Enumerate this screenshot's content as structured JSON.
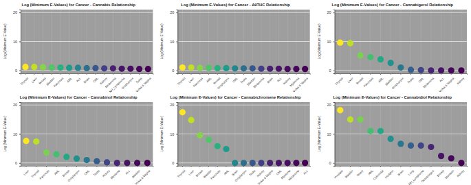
{
  "chart_data": [
    {
      "type": "scatter",
      "title": "Log (Minimum E-Values) for Cancer - Cannabis Relationship",
      "y_label": "Log (Minimum E-Value)",
      "categories": [
        "Thyroid",
        "Liver",
        "Breast",
        "Bladder",
        "Pancreas",
        "AML",
        "ALL",
        "Brain",
        "CML",
        "Kidney",
        "Melanoma",
        "NH_Lymphoma",
        "Oropharynx",
        "Testis",
        "Vulva & Vagina"
      ],
      "values": [
        1.2,
        1.2,
        1.1,
        1.0,
        1.0,
        0.9,
        0.9,
        0.8,
        0.8,
        0.7,
        0.7,
        0.6,
        0.6,
        0.5,
        0.5
      ],
      "colors": [
        "#fde725",
        "#c2df23",
        "#86d549",
        "#52c569",
        "#2ab07f",
        "#1e9b8a",
        "#25858e",
        "#2d708e",
        "#38588c",
        "#433e85",
        "#482173",
        "#481467",
        "#470d60",
        "#46075a",
        "#440154"
      ],
      "ylim": [
        -1,
        21
      ],
      "yticks": [
        0,
        10,
        20
      ],
      "grid": true
    },
    {
      "type": "scatter",
      "title": "Log (Minimum E-Values) for Cancer - Δ9THC Relationship",
      "y_label": "Log (Minimum E-Value)",
      "categories": [
        "Thyroid",
        "Liver",
        "Pancreas",
        "AML",
        "Breast",
        "Oropharynx",
        "CML",
        "Testis",
        "Bladder",
        "Melanoma",
        "Brain",
        "ALL",
        "Kidney",
        "Myeloma",
        "Vulva & Vagina"
      ],
      "values": [
        1.0,
        1.0,
        0.9,
        0.9,
        0.8,
        0.8,
        0.7,
        0.7,
        0.7,
        0.6,
        0.6,
        0.6,
        0.5,
        0.5,
        0.5
      ],
      "colors": [
        "#fde725",
        "#c2df23",
        "#86d549",
        "#52c569",
        "#2ab07f",
        "#1e9b8a",
        "#25858e",
        "#2d708e",
        "#38588c",
        "#433e85",
        "#482173",
        "#481467",
        "#470d60",
        "#46075a",
        "#440154"
      ],
      "ylim": [
        -1,
        21
      ],
      "yticks": [
        0,
        10,
        20
      ],
      "grid": true
    },
    {
      "type": "scatter",
      "title": "Log (Minimum E-Values) for Cancer - Cannabigerol Relationship",
      "y_label": "Log (Minimum E-Value)",
      "categories": [
        "Thyroid",
        "Liver",
        "Breast",
        "Pancreas",
        "AML",
        "Bladder",
        "Oropharynx",
        "Testis",
        "CML",
        "Melanoma",
        "ALL",
        "Vulva & Vagina",
        "Kidney"
      ],
      "values": [
        9.6,
        9.4,
        5.2,
        4.6,
        3.8,
        2.6,
        1.0,
        0.2,
        0.1,
        0,
        0,
        0,
        0
      ],
      "colors": [
        "#fde725",
        "#bddf26",
        "#7ad151",
        "#44bf70",
        "#22a884",
        "#21918c",
        "#2a788e",
        "#355f8d",
        "#414487",
        "#482475",
        "#471365",
        "#45085b",
        "#440154"
      ],
      "ylim": [
        -1,
        21
      ],
      "yticks": [
        0,
        10,
        20
      ],
      "grid": true
    },
    {
      "type": "scatter",
      "title": "Log (Minimum E-Values) for Cancer - Cannabinol Relationship",
      "y_label": "Log (Minimum E-Value)",
      "categories": [
        "Liver",
        "Thyroid",
        "Pancreas",
        "AML",
        "Breast",
        "Oropharynx",
        "CML",
        "Testis",
        "Kidney",
        "Myeloma",
        "ALL",
        "Bladder",
        "Vulva & Vagina"
      ],
      "values": [
        7.6,
        7.4,
        3.6,
        3.0,
        2.1,
        1.5,
        1.0,
        0.6,
        0.2,
        0,
        0,
        0,
        0
      ],
      "colors": [
        "#fde725",
        "#bddf26",
        "#7ad151",
        "#44bf70",
        "#22a884",
        "#21918c",
        "#2a788e",
        "#355f8d",
        "#414487",
        "#482475",
        "#471365",
        "#45085b",
        "#440154"
      ],
      "ylim": [
        -1,
        21
      ],
      "yticks": [
        0,
        10,
        20
      ],
      "grid": true
    },
    {
      "type": "scatter",
      "title": "Log (Minimum E-Values) for Cancer - Cannabichromene Relationship",
      "y_label": "Log (Minimum E-Value)",
      "categories": [
        "Thyroid",
        "Liver",
        "Breast",
        "Bladder",
        "Pancreas",
        "AML",
        "Brain",
        "Oropharynx",
        "Testis",
        "Kidney",
        "Vulva & Vagina",
        "CML",
        "Myeloma",
        "Melanoma",
        "ALL"
      ],
      "values": [
        17.5,
        14.8,
        9.5,
        8.0,
        5.8,
        4.8,
        0,
        0,
        0,
        0,
        0,
        0,
        0,
        0,
        0
      ],
      "colors": [
        "#fde725",
        "#c2df23",
        "#86d549",
        "#52c569",
        "#2ab07f",
        "#1e9b8a",
        "#25858e",
        "#2d708e",
        "#38588c",
        "#433e85",
        "#482173",
        "#481467",
        "#470d60",
        "#46075a",
        "#440154"
      ],
      "ylim": [
        -1,
        21
      ],
      "yticks": [
        0,
        10,
        20
      ],
      "grid": true
    },
    {
      "type": "scatter",
      "title": "Log (Minimum E-Values) for Cancer - Cannabidiol Relationship",
      "y_label": "Log (Minimum E-Value)",
      "categories": [
        "Prostate",
        "Bladder",
        "Ovary",
        "AML",
        "Colorectal",
        "Hodgkin",
        "Brain",
        "Lung",
        "NH_Lymphoma",
        "Oesophagus",
        "Breast",
        "Stomach",
        "Kidney"
      ],
      "values": [
        18.2,
        15.0,
        15.0,
        11.0,
        11.0,
        8.3,
        6.6,
        6.0,
        6.0,
        5.5,
        2.4,
        1.6,
        0
      ],
      "colors": [
        "#fde725",
        "#bddf26",
        "#7ad151",
        "#44bf70",
        "#22a884",
        "#21918c",
        "#2a788e",
        "#355f8d",
        "#414487",
        "#482475",
        "#471365",
        "#45085b",
        "#440154"
      ],
      "ylim": [
        -1,
        21
      ],
      "yticks": [
        0,
        10,
        20
      ],
      "grid": true
    }
  ]
}
